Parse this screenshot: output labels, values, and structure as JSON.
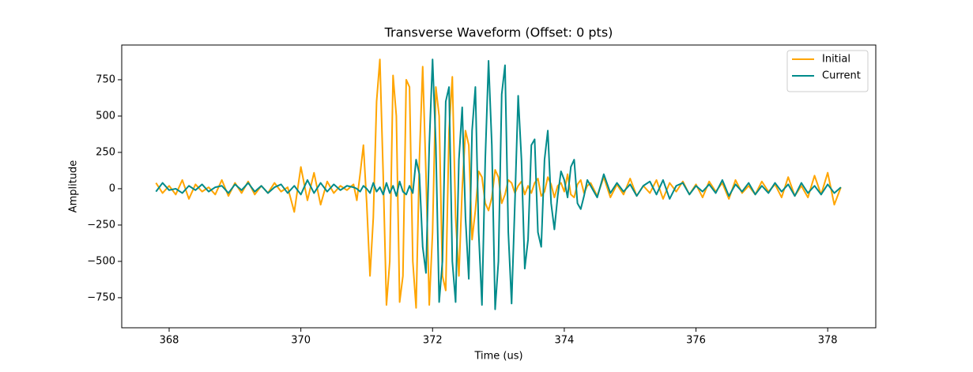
{
  "chart_data": {
    "type": "line",
    "title": "Transverse Waveform (Offset: 0 pts)",
    "xlabel": "Time (us)",
    "ylabel": "Amplitude",
    "x": [
      367.8,
      367.9,
      368.0,
      368.1,
      368.2,
      368.3,
      368.4,
      368.5,
      368.6,
      368.7,
      368.8,
      368.9,
      369.0,
      369.1,
      369.2,
      369.3,
      369.4,
      369.5,
      369.6,
      369.7,
      369.8,
      369.9,
      370.0,
      370.1,
      370.2,
      370.3,
      370.4,
      370.5,
      370.6,
      370.7,
      370.8,
      370.85,
      370.9,
      370.95,
      371.0,
      371.05,
      371.1,
      371.15,
      371.2,
      371.25,
      371.3,
      371.35,
      371.4,
      371.45,
      371.5,
      371.55,
      371.6,
      371.65,
      371.7,
      371.75,
      371.8,
      371.85,
      371.9,
      371.95,
      372.0,
      372.05,
      372.1,
      372.15,
      372.2,
      372.25,
      372.3,
      372.35,
      372.4,
      372.45,
      372.5,
      372.55,
      372.6,
      372.65,
      372.7,
      372.75,
      372.8,
      372.85,
      372.9,
      372.95,
      373.0,
      373.05,
      373.1,
      373.15,
      373.2,
      373.25,
      373.3,
      373.35,
      373.4,
      373.45,
      373.5,
      373.55,
      373.6,
      373.65,
      373.7,
      373.75,
      373.8,
      373.85,
      373.9,
      373.95,
      374.0,
      374.05,
      374.1,
      374.15,
      374.2,
      374.25,
      374.3,
      374.35,
      374.4,
      374.5,
      374.6,
      374.7,
      374.8,
      374.9,
      375.0,
      375.1,
      375.2,
      375.3,
      375.4,
      375.5,
      375.6,
      375.7,
      375.8,
      375.9,
      376.0,
      376.1,
      376.2,
      376.3,
      376.4,
      376.5,
      376.6,
      376.7,
      376.8,
      376.9,
      377.0,
      377.1,
      377.2,
      377.3,
      377.4,
      377.5,
      377.6,
      377.7,
      377.8,
      377.9,
      378.0,
      378.1,
      378.2
    ],
    "series": [
      {
        "name": "Initial",
        "color": "#ffa500",
        "values": [
          40,
          -30,
          20,
          -40,
          60,
          -70,
          30,
          -20,
          10,
          -40,
          60,
          -50,
          40,
          -30,
          50,
          -40,
          20,
          -30,
          40,
          -20,
          10,
          -160,
          150,
          -80,
          110,
          -110,
          50,
          -30,
          20,
          -10,
          30,
          -80,
          100,
          300,
          -100,
          -600,
          -200,
          600,
          890,
          100,
          -800,
          -500,
          780,
          500,
          -780,
          -600,
          750,
          700,
          -500,
          -820,
          200,
          840,
          100,
          -800,
          -300,
          700,
          500,
          -600,
          -700,
          400,
          770,
          -200,
          -600,
          0,
          400,
          300,
          -350,
          -150,
          120,
          80,
          -100,
          -150,
          -60,
          130,
          80,
          -100,
          -40,
          60,
          40,
          -30,
          20,
          50,
          -40,
          20,
          -30,
          40,
          70,
          -50,
          -20,
          80,
          30,
          -60,
          20,
          40,
          -20,
          100,
          -40,
          -60,
          30,
          60,
          -30,
          20,
          40,
          -50,
          80,
          -60,
          30,
          -40,
          70,
          -50,
          20,
          -30,
          60,
          -70,
          40,
          -20,
          50,
          -40,
          30,
          -60,
          50,
          -20,
          40,
          -70,
          60,
          -30,
          20,
          -40,
          50,
          -20,
          30,
          -60,
          80,
          -50,
          20,
          -60,
          90,
          -40,
          110,
          -110,
          10
        ]
      },
      {
        "name": "Current",
        "color": "#008b8b",
        "values": [
          -20,
          40,
          -10,
          0,
          -30,
          20,
          -10,
          30,
          -20,
          10,
          20,
          -30,
          30,
          -10,
          40,
          -20,
          20,
          -30,
          10,
          30,
          -30,
          20,
          -40,
          60,
          -30,
          40,
          -20,
          30,
          -10,
          20,
          10,
          0,
          -20,
          20,
          0,
          -30,
          40,
          -20,
          10,
          -40,
          40,
          -30,
          20,
          -50,
          50,
          -20,
          -40,
          20,
          -30,
          200,
          100,
          -400,
          -580,
          300,
          890,
          300,
          -780,
          -500,
          600,
          700,
          -500,
          -780,
          200,
          560,
          -200,
          -620,
          400,
          700,
          -300,
          -800,
          200,
          880,
          300,
          -830,
          -500,
          650,
          850,
          -300,
          -790,
          -100,
          640,
          200,
          -550,
          -350,
          300,
          340,
          -300,
          -400,
          200,
          400,
          -100,
          -280,
          -50,
          120,
          60,
          -60,
          150,
          200,
          -100,
          -140,
          -50,
          60,
          20,
          -60,
          100,
          -30,
          40,
          -20,
          30,
          -50,
          20,
          50,
          -40,
          60,
          -70,
          20,
          40,
          -40,
          20,
          -20,
          30,
          -30,
          60,
          -50,
          30,
          -20,
          40,
          -40,
          20,
          -30,
          40,
          -20,
          30,
          -50,
          40,
          -30,
          20,
          -40,
          30,
          -30,
          10
        ]
      }
    ],
    "xlim": [
      367.28,
      378.73
    ],
    "ylim": [
      -957,
      989
    ],
    "xticks": [
      368,
      370,
      372,
      374,
      376,
      378
    ],
    "yticks": [
      {
        "value": -750,
        "label": "−750"
      },
      {
        "value": -500,
        "label": "−500"
      },
      {
        "value": -250,
        "label": "−250"
      },
      0,
      250,
      500,
      750
    ],
    "legend": "upper right",
    "grid": false
  }
}
